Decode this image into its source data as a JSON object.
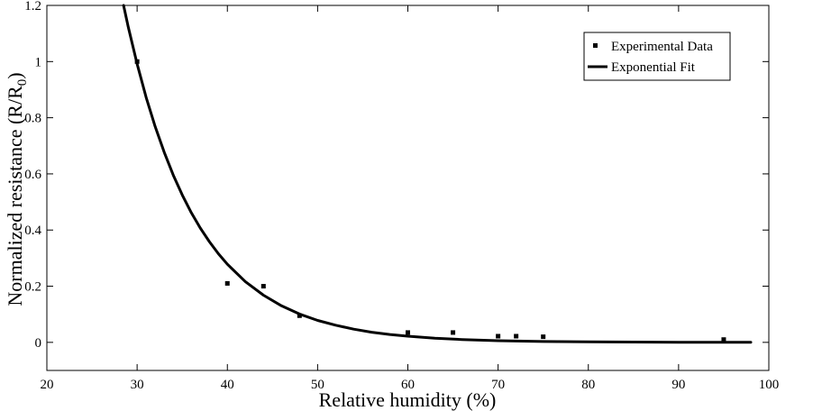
{
  "chart_data": {
    "type": "scatter",
    "title": "",
    "xlabel": "Relative humidity (%)",
    "ylabel_main": "Normalized resistance (R/R",
    "ylabel_sub": "0",
    "ylabel_close": ")",
    "xlim": [
      20,
      100
    ],
    "ylim": [
      -0.1,
      1.2
    ],
    "xticks": [
      20,
      30,
      40,
      50,
      60,
      70,
      80,
      90,
      100
    ],
    "yticks": [
      0,
      0.2,
      0.4,
      0.6,
      0.8,
      1,
      1.2
    ],
    "xtick_labels": [
      "20",
      "30",
      "40",
      "50",
      "60",
      "70",
      "80",
      "90",
      "100"
    ],
    "ytick_labels": [
      "0",
      "0.2",
      "0.4",
      "0.6",
      "0.8",
      "1",
      "1.2"
    ],
    "grid": false,
    "legend_position": "top-right",
    "series": [
      {
        "name": "Experimental Data",
        "kind": "markers",
        "marker": "square",
        "color": "#000000",
        "x": [
          30,
          40,
          44,
          48,
          60,
          65,
          70,
          72,
          75,
          95
        ],
        "y": [
          1.0,
          0.21,
          0.2,
          0.095,
          0.035,
          0.035,
          0.022,
          0.022,
          0.02,
          0.01
        ]
      },
      {
        "name": "Exponential Fit",
        "kind": "line",
        "color": "#000000",
        "x": [
          28.5,
          29,
          30,
          31,
          32,
          33,
          34,
          35,
          36,
          37,
          38,
          39,
          40,
          42,
          44,
          46,
          48,
          50,
          52,
          54,
          56,
          58,
          60,
          63,
          66,
          70,
          75,
          80,
          85,
          90,
          95,
          98
        ],
        "y": [
          1.2,
          1.126,
          0.992,
          0.873,
          0.769,
          0.677,
          0.596,
          0.525,
          0.462,
          0.407,
          0.359,
          0.316,
          0.278,
          0.216,
          0.168,
          0.13,
          0.101,
          0.078,
          0.061,
          0.047,
          0.036,
          0.028,
          0.022,
          0.015,
          0.01,
          0.006,
          0.003,
          0.002,
          0.001,
          0.0006,
          0.0003,
          0.0002
        ]
      }
    ]
  }
}
